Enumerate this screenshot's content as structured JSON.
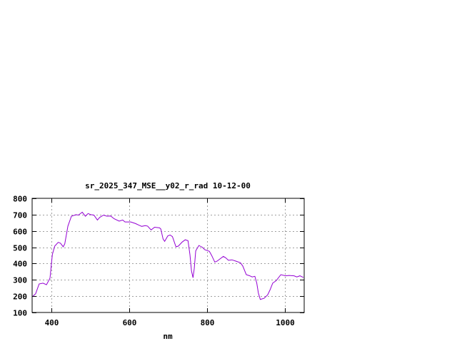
{
  "chart_data": {
    "type": "line",
    "title": "sr_2025_347_MSE__y02_r_rad 10-12-00",
    "xlabel": "nm",
    "ylabel": "",
    "xlim": [
      350,
      1050
    ],
    "ylim": [
      100,
      800
    ],
    "xticks": [
      400,
      600,
      800,
      1000
    ],
    "yticks": [
      100,
      200,
      300,
      400,
      500,
      600,
      700,
      800
    ],
    "grid": true,
    "line_color": "#9400d3",
    "series": [
      {
        "x": [
          352,
          359,
          368,
          378,
          387,
          396,
          402,
          408,
          417,
          423,
          430,
          434,
          442,
          451,
          463,
          469,
          479,
          487,
          494,
          501,
          509,
          518,
          524,
          534,
          543,
          552,
          561,
          574,
          583,
          589,
          604,
          616,
          625,
          632,
          641,
          647,
          656,
          665,
          678,
          681,
          687,
          691,
          699,
          705,
          711,
          720,
          726,
          736,
          744,
          751,
          756,
          760,
          764,
          767,
          771,
          779,
          788,
          794,
          806,
          812,
          820,
          826,
          842,
          848,
          855,
          864,
          874,
          886,
          892,
          901,
          910,
          916,
          923,
          928,
          932,
          937,
          947,
          956,
          962,
          969,
          978,
          990,
          1002,
          1011,
          1024,
          1031,
          1039,
          1048
        ],
        "y": [
          200,
          215,
          275,
          280,
          270,
          310,
          455,
          507,
          530,
          525,
          503,
          521,
          630,
          690,
          700,
          697,
          715,
          690,
          707,
          700,
          697,
          667,
          683,
          697,
          690,
          692,
          675,
          660,
          667,
          655,
          655,
          645,
          635,
          628,
          633,
          630,
          606,
          623,
          619,
          612,
          550,
          536,
          570,
          575,
          565,
          503,
          507,
          532,
          546,
          540,
          455,
          354,
          313,
          368,
          478,
          511,
          500,
          485,
          475,
          449,
          409,
          415,
          444,
          435,
          420,
          423,
          415,
          405,
          385,
          332,
          325,
          318,
          322,
          280,
          220,
          180,
          187,
          208,
          238,
          280,
          295,
          332,
          325,
          327,
          325,
          318,
          325,
          315
        ]
      }
    ]
  }
}
